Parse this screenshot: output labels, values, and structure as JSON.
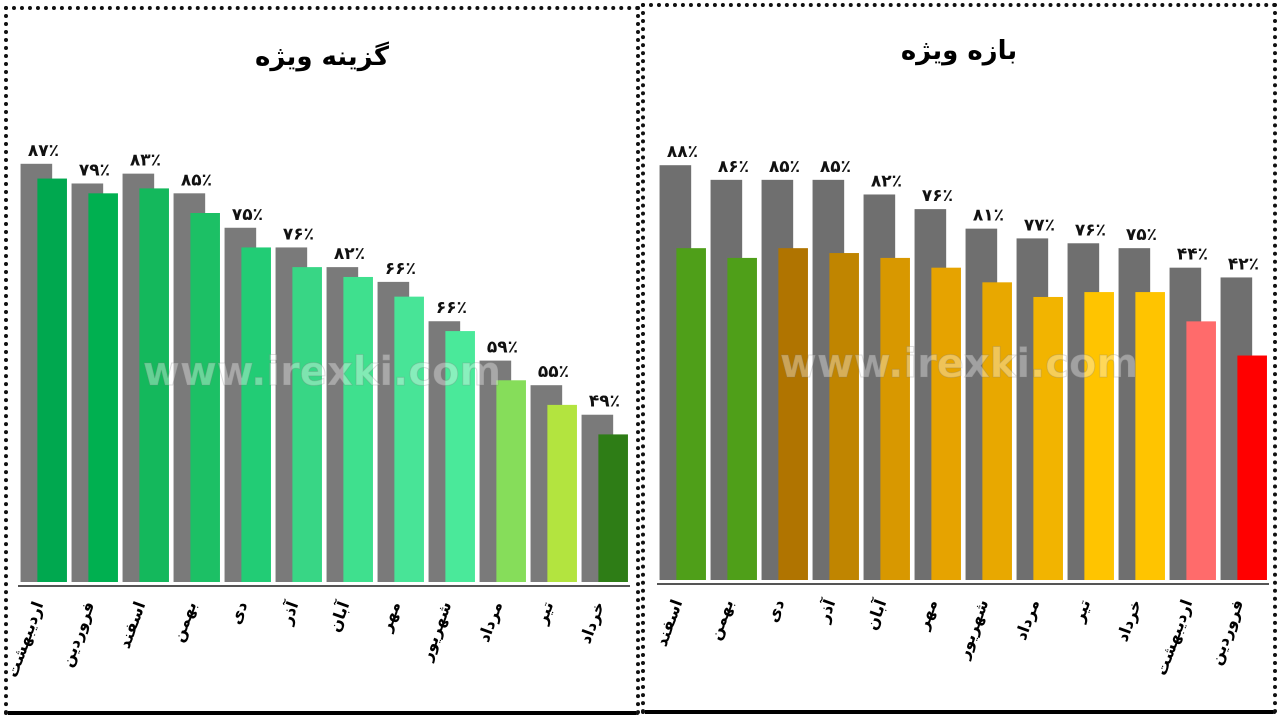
{
  "watermark": "www.irexki.com",
  "chart_data": [
    {
      "type": "bar",
      "title": "گزینه ویژه",
      "categories": [
        "اردیبهشت",
        "فروردین",
        "اسفند",
        "بهمن",
        "دی",
        "آذر",
        "آبان",
        "مهر",
        "شهریور",
        "مرداد",
        "تیر",
        "خرداد"
      ],
      "series": [
        {
          "values": [
            85,
            81,
            83,
            79,
            72,
            68,
            64,
            61,
            53,
            45,
            40,
            34
          ],
          "color": "#7a7a7a"
        },
        {
          "values": [
            82,
            79,
            80,
            75,
            68,
            64,
            62,
            58,
            51,
            41,
            36,
            30
          ],
          "color": "#00b050"
        }
      ],
      "data_labels": [
        "۸۷٪",
        "۷۹٪",
        "۸۳٪",
        "۸۵٪",
        "۷۵٪",
        "۷۶٪",
        "۸۲٪",
        "۶۶٪",
        "۶۶٪",
        "۵۹٪",
        "۵۵٪",
        "۴۹٪"
      ],
      "bar_colors": [
        "#00a84f",
        "#00b050",
        "#14b85c",
        "#1cc065",
        "#22cc75",
        "#38d685",
        "#3fe08e",
        "#48e497",
        "#4ae99a",
        "#86dd5a",
        "#b3e43f",
        "#2e7d16"
      ],
      "ylim": [
        0,
        100
      ]
    },
    {
      "type": "bar",
      "title": "بازه ویژه",
      "categories": [
        "اسفند",
        "بهمن",
        "دی",
        "آذر",
        "آبان",
        "مهر",
        "شهریور",
        "مرداد",
        "تیر",
        "خرداد",
        "اردیبهشت",
        "فروردین"
      ],
      "series": [
        {
          "values": [
            85,
            82,
            82,
            82,
            79,
            76,
            72,
            70,
            69,
            68,
            64,
            62
          ],
          "color": "#6f6f6f"
        },
        {
          "values": [
            68,
            66,
            68,
            67,
            66,
            64,
            61,
            58,
            59,
            59,
            53,
            46
          ],
          "color": "#00b050"
        }
      ],
      "data_labels": [
        "۸۸٪",
        "۸۶٪",
        "۸۵٪",
        "۸۵٪",
        "۸۲٪",
        "۷۶٪",
        "۸۱٪",
        "۷۷٪",
        "۷۶٪",
        "۷۵٪",
        "۴۴٪",
        "۴۲٪"
      ],
      "bar_colors": [
        "#4f9f19",
        "#4f9f19",
        "#b07400",
        "#c08500",
        "#d89800",
        "#e6a300",
        "#e8a800",
        "#f2b400",
        "#ffc400",
        "#ffc400",
        "#ff6b6b",
        "#ff0000"
      ],
      "ylim": [
        0,
        100
      ]
    }
  ]
}
